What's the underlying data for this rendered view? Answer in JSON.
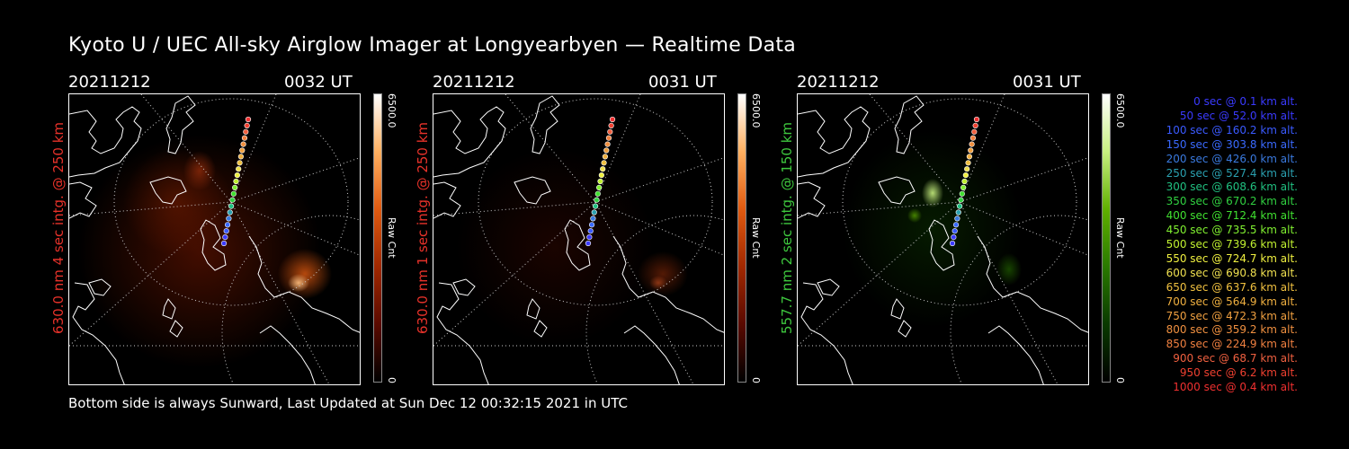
{
  "title": "Kyoto U / UEC All-sky Airglow Imager at Longyearbyen — Realtime Data",
  "footer": "Bottom side is always Sunward, Last Updated at Sun Dec 12 00:32:15 2021 in UTC",
  "panels": [
    {
      "date": "20211212",
      "time": "0032  UT",
      "ylabel": "630.0 nm 4 sec intg. @ 250 km",
      "ylabel_color": "#e8322a",
      "colorbar_max": "6500.0",
      "colorbar_min": "0",
      "colorbar_label": "Raw Cnt",
      "colorbar_palette": [
        "#000000",
        "#5a0a00",
        "#a02800",
        "#e05a10",
        "#ffb060",
        "#ffffff"
      ],
      "emission_color": "red"
    },
    {
      "date": "20211212",
      "time": "0031  UT",
      "ylabel": "630.0 nm 1 sec intg. @ 250 km",
      "ylabel_color": "#e8322a",
      "colorbar_max": "6500.0",
      "colorbar_min": "0",
      "colorbar_label": "Raw Cnt",
      "colorbar_palette": [
        "#000000",
        "#5a0a00",
        "#a02800",
        "#e05a10",
        "#ffb060",
        "#ffffff"
      ],
      "emission_color": "red"
    },
    {
      "date": "20211212",
      "time": "0031  UT",
      "ylabel": "557.7 nm 2 sec intg. @ 150 km",
      "ylabel_color": "#3ec83e",
      "colorbar_max": "6500.0",
      "colorbar_min": "0",
      "colorbar_label": "Raw Cnt",
      "colorbar_palette": [
        "#000000",
        "#0a3a00",
        "#2a7a00",
        "#60b000",
        "#c8f080",
        "#ffffff"
      ],
      "emission_color": "green"
    }
  ],
  "trajectory_legend": [
    {
      "text": "0 sec @    0.1 km alt.",
      "color": "#3a3aff"
    },
    {
      "text": "50 sec @   52.0 km alt.",
      "color": "#3a3aff"
    },
    {
      "text": "100 sec @  160.2 km alt.",
      "color": "#3a5aff"
    },
    {
      "text": "150 sec @  303.8 km alt.",
      "color": "#3a6aff"
    },
    {
      "text": "200 sec @  426.0 km alt.",
      "color": "#3a7adf"
    },
    {
      "text": "250 sec @  527.4 km alt.",
      "color": "#2aa0b0"
    },
    {
      "text": "300 sec @  608.6 km alt.",
      "color": "#20c080"
    },
    {
      "text": "350 sec @  670.2 km alt.",
      "color": "#30d040"
    },
    {
      "text": "400 sec @  712.4 km alt.",
      "color": "#40e030"
    },
    {
      "text": "450 sec @  735.5 km alt.",
      "color": "#80f030"
    },
    {
      "text": "500 sec @  739.6 km alt.",
      "color": "#c0f030"
    },
    {
      "text": "550 sec @  724.7 km alt.",
      "color": "#f0f040"
    },
    {
      "text": "600 sec @  690.8 km alt.",
      "color": "#f0e050"
    },
    {
      "text": "650 sec @  637.6 km alt.",
      "color": "#f0c040"
    },
    {
      "text": "700 sec @  564.9 km alt.",
      "color": "#f0b040"
    },
    {
      "text": "750 sec @  472.3 km alt.",
      "color": "#f0a040"
    },
    {
      "text": "800 sec @  359.2 km alt.",
      "color": "#f09040"
    },
    {
      "text": "850 sec @  224.9 km alt.",
      "color": "#f08040"
    },
    {
      "text": "900 sec @   68.7 km alt.",
      "color": "#f06040"
    },
    {
      "text": "950 sec @    6.2 km alt.",
      "color": "#f04030"
    },
    {
      "text": "1000 sec @    0.4 km alt.",
      "color": "#f03030"
    }
  ],
  "trajectory_colors": [
    "#3a3aff",
    "#3a3aff",
    "#3a5aff",
    "#3a6aff",
    "#3a7adf",
    "#2aa0b0",
    "#20c080",
    "#30d040",
    "#40e030",
    "#80f030",
    "#c0f030",
    "#f0f040",
    "#f0e050",
    "#f0c040",
    "#f0b040",
    "#f0a040",
    "#f09040",
    "#f08040",
    "#f06040",
    "#f04030",
    "#f03030"
  ]
}
